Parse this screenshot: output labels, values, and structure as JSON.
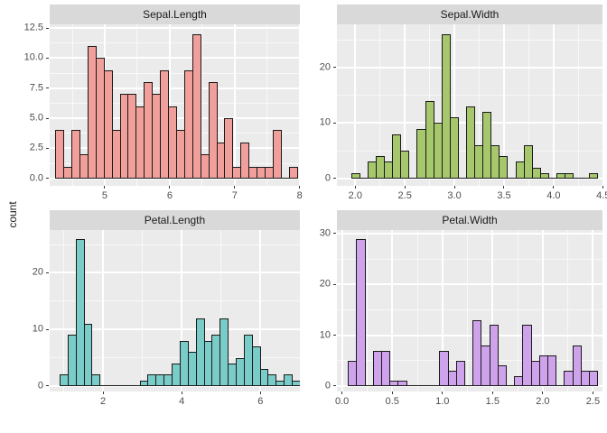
{
  "figure": {
    "ylabel": "count",
    "colors": {
      "panel_bg": "#EBEBEB",
      "strip_bg": "#D9D9D9",
      "grid_major": "#FFFFFF",
      "grid_minor": "rgba(255,255,255,0.65)",
      "bar_stroke": "#1A1A1A",
      "axis_text": "#4D4D4D",
      "strip_text": "#1A1A1A",
      "tick_mark": "#333333"
    }
  },
  "chart_data": [
    {
      "type": "histogram",
      "panel": "top-left",
      "title": "Sepal.Length",
      "fill": "#F19F9A",
      "bin_start": 4.238,
      "bin_width": 0.124,
      "counts": [
        4,
        1,
        4,
        2,
        11,
        10,
        9,
        4,
        7,
        7,
        6,
        8,
        7,
        9,
        6,
        4,
        9,
        12,
        2,
        8,
        3,
        5,
        1,
        3,
        1,
        1,
        1,
        4,
        0,
        1
      ],
      "x_domain": [
        4.152,
        8.004
      ],
      "y_domain": [
        -0.61,
        12.8
      ],
      "x_ticks": {
        "values": [
          5,
          6,
          7,
          8
        ],
        "labels": [
          "5",
          "6",
          "7",
          "8"
        ],
        "minor": [
          4.5,
          5.5,
          6.5,
          7.5
        ]
      },
      "y_ticks": {
        "values": [
          0,
          2.5,
          5,
          7.5,
          10,
          12.5
        ],
        "labels": [
          "0.0",
          "2.5",
          "5.0",
          "7.5",
          "10.0",
          "12.5"
        ],
        "minor": [
          1.25,
          3.75,
          6.25,
          8.75,
          11.25
        ]
      }
    },
    {
      "type": "histogram",
      "panel": "top-right",
      "title": "Sepal.Width",
      "fill": "#A6C76C",
      "bin_start": 1.9586,
      "bin_width": 0.0828,
      "counts": [
        1,
        0,
        3,
        4,
        3,
        8,
        5,
        0,
        9,
        14,
        10,
        26,
        11,
        0,
        13,
        6,
        12,
        6,
        4,
        0,
        3,
        6,
        2,
        1,
        0,
        1,
        1,
        0,
        0,
        1
      ],
      "x_domain": [
        1.815,
        4.493
      ],
      "y_domain": [
        -1.32,
        27.78
      ],
      "x_ticks": {
        "values": [
          2.0,
          2.5,
          3.0,
          3.5,
          4.0,
          4.5
        ],
        "labels": [
          "2.0",
          "2.5",
          "3.0",
          "3.5",
          "4.0",
          "4.5"
        ],
        "minor": [
          2.25,
          2.75,
          3.25,
          3.75,
          4.25
        ]
      },
      "y_ticks": {
        "values": [
          0,
          10,
          20
        ],
        "labels": [
          "0",
          "10",
          "20"
        ],
        "minor": [
          5,
          15,
          25
        ]
      }
    },
    {
      "type": "histogram",
      "panel": "bottom-left",
      "title": "Petal.Length",
      "fill": "#7ACCC8",
      "bin_start": 0.898,
      "bin_width": 0.2034,
      "counts": [
        2,
        9,
        26,
        11,
        2,
        0,
        0,
        0,
        0,
        0,
        1,
        2,
        2,
        2,
        4,
        8,
        6,
        12,
        8,
        9,
        12,
        4,
        5,
        9,
        7,
        3,
        2,
        1,
        2,
        1
      ],
      "x_domain": [
        0.645,
        7.003
      ],
      "y_domain": [
        -0.97,
        27.57
      ],
      "x_ticks": {
        "values": [
          2,
          4,
          6
        ],
        "labels": [
          "2",
          "4",
          "6"
        ],
        "minor": [
          1,
          3,
          5
        ]
      },
      "y_ticks": {
        "values": [
          0,
          10,
          20
        ],
        "labels": [
          "0",
          "10",
          "20"
        ],
        "minor": [
          5,
          15,
          25
        ]
      }
    },
    {
      "type": "histogram",
      "panel": "bottom-right",
      "title": "Petal.Width",
      "fill": "#CEA3EB",
      "bin_start": 0.0586,
      "bin_width": 0.0828,
      "counts": [
        5,
        29,
        0,
        7,
        7,
        1,
        1,
        0,
        0,
        0,
        0,
        7,
        3,
        5,
        0,
        13,
        8,
        12,
        4,
        0,
        2,
        12,
        5,
        6,
        6,
        0,
        3,
        8,
        3,
        3
      ],
      "x_domain": [
        -0.051,
        2.595
      ],
      "y_domain": [
        -1.08,
        30.71
      ],
      "x_ticks": {
        "values": [
          0.0,
          0.5,
          1.0,
          1.5,
          2.0,
          2.5
        ],
        "labels": [
          "0.0",
          "0.5",
          "1.0",
          "1.5",
          "2.0",
          "2.5"
        ],
        "minor": [
          0.25,
          0.75,
          1.25,
          1.75,
          2.25
        ]
      },
      "y_ticks": {
        "values": [
          0,
          10,
          20,
          30
        ],
        "labels": [
          "0",
          "10",
          "20",
          "30"
        ],
        "minor": [
          5,
          15,
          25
        ]
      }
    }
  ]
}
